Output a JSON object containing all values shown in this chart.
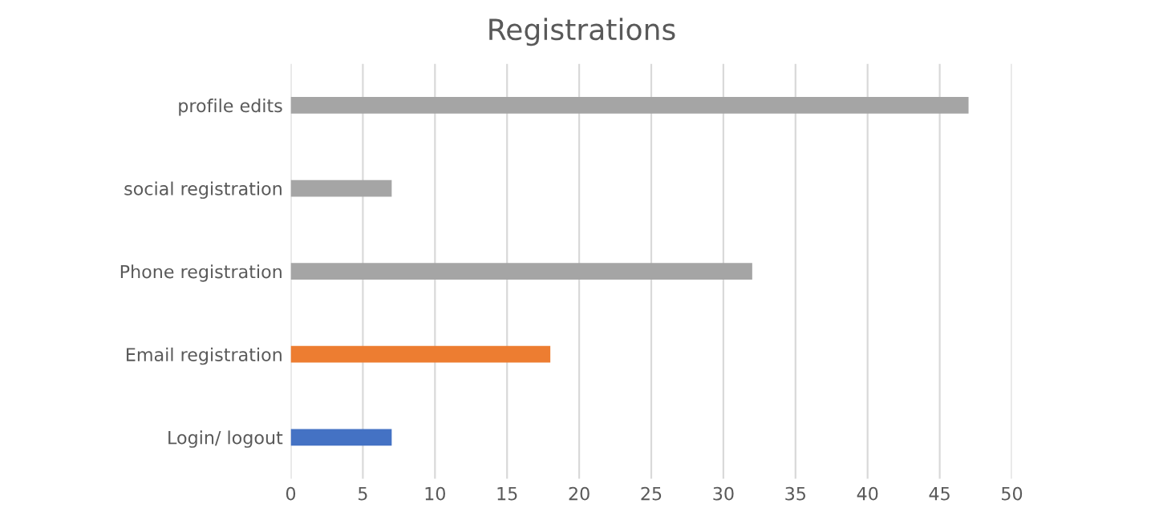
{
  "chart_data": {
    "type": "bar",
    "title": "Registrations",
    "orientation": "horizontal",
    "categories": [
      "profile edits",
      "social registration",
      "Phone registration",
      "Email registration",
      "Login/ logout"
    ],
    "values": [
      47,
      7,
      32,
      18,
      7
    ],
    "colors": [
      "#a5a5a5",
      "#a5a5a5",
      "#a5a5a5",
      "#ed7d31",
      "#4472c4"
    ],
    "xlim": [
      0,
      50
    ],
    "xticks": [
      0,
      5,
      10,
      15,
      20,
      25,
      30,
      35,
      40,
      45,
      50
    ],
    "grid": "x",
    "legend": false
  }
}
